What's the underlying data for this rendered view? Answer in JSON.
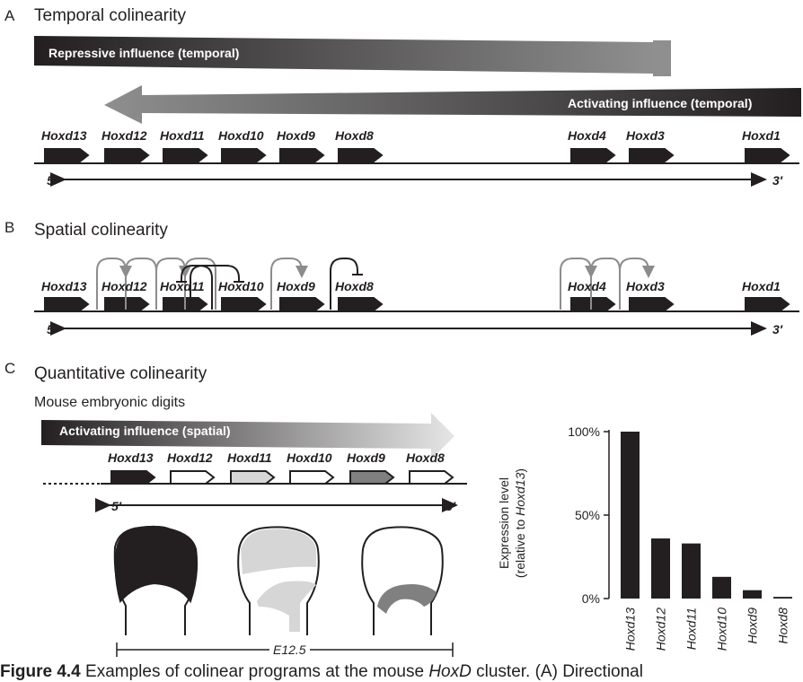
{
  "panel_a": {
    "letter": "A",
    "title": "Temporal colinearity",
    "repressive_label": "Repressive influence (temporal)",
    "activating_label": "Activating influence (temporal)",
    "genes": [
      "Hoxd13",
      "Hoxd12",
      "Hoxd11",
      "Hoxd10",
      "Hoxd9",
      "Hoxd8",
      "Hoxd4",
      "Hoxd3",
      "Hoxd1"
    ],
    "end5": "5′",
    "end3": "3′"
  },
  "panel_b": {
    "letter": "B",
    "title": "Spatial colinearity",
    "genes": [
      "Hoxd13",
      "Hoxd12",
      "Hoxd11",
      "Hoxd10",
      "Hoxd9",
      "Hoxd8",
      "Hoxd4",
      "Hoxd3",
      "Hoxd1"
    ],
    "end5": "5′",
    "end3": "3′"
  },
  "panel_c": {
    "letter": "C",
    "title": "Quantitative colinearity",
    "subtitle": "Mouse embryonic digits",
    "activating_label": "Activating influence (spatial)",
    "genes": [
      "Hoxd13",
      "Hoxd12",
      "Hoxd11",
      "Hoxd10",
      "Hoxd9",
      "Hoxd8"
    ],
    "gene_fills": [
      "#231f20",
      "#ffffff",
      "#d6d6d6",
      "#ffffff",
      "#808080",
      "#ffffff"
    ],
    "end5": "5′",
    "end3": "3′",
    "stage": "E12.5"
  },
  "colors": {
    "dark": "#231f20",
    "mid_gray": "#808080",
    "light_gray": "#d6d6d6",
    "arc_gray": "#8c8c8c"
  },
  "chart_data": {
    "type": "bar",
    "categories": [
      "Hoxd13",
      "Hoxd12",
      "Hoxd11",
      "Hoxd10",
      "Hoxd9",
      "Hoxd8"
    ],
    "values": [
      100,
      36,
      33,
      13,
      5,
      1
    ],
    "ylabel_line1": "Expression level",
    "ylabel_line2_prefix": "(relative to ",
    "ylabel_line2_italic": "Hoxd13",
    "ylabel_line2_suffix": ")",
    "ylim": [
      0,
      100
    ],
    "yticks": [
      "0%",
      "50%",
      "100%"
    ],
    "ytick_values": [
      0,
      50,
      100
    ],
    "grid": false
  },
  "caption": {
    "prefix": "Figure 4.4",
    "text": " Examples of colinear programs at the mouse ",
    "italic": "HoxD",
    "suffix": " cluster. (A) Directional"
  }
}
